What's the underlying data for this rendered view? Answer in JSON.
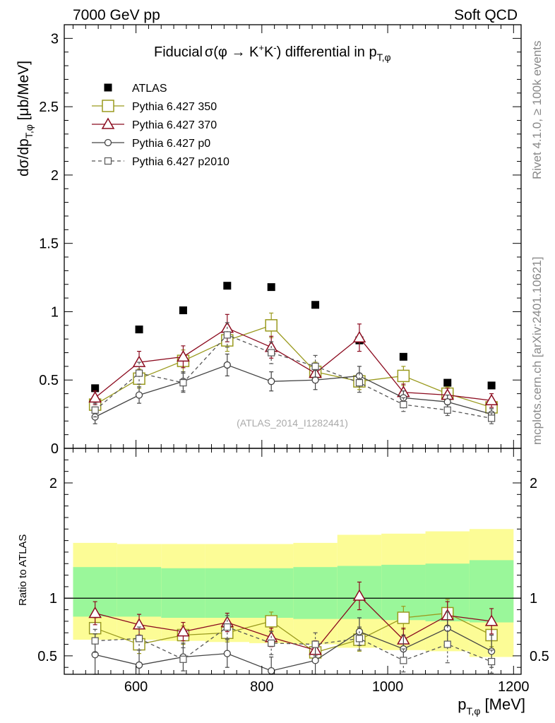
{
  "header": {
    "left": "7000 GeV pp",
    "right": "Soft QCD"
  },
  "side_labels": {
    "rivet": "Rivet 4.1.0, ≥ 100k events",
    "mcplots": "mcplots.cern.ch [arXiv:2401.10621]"
  },
  "watermark": "(ATLAS_2014_I1282441)",
  "colors": {
    "atlas": "#000000",
    "p350": "#9a9a1e",
    "p370": "#8b0a1e",
    "p0": "#444444",
    "p2010": "#555555",
    "band_inner": "#9af79a",
    "band_outer": "#fcfc96"
  },
  "chart_data": [
    {
      "type": "line",
      "title": "Fiducial σ(φ → K⁺K⁻) differential in p_T,φ",
      "title_parts": {
        "prefix": "Fiducial",
        "sigma": "σ(φ →  K",
        "k1sup": "+",
        "kmid": "K",
        "k2sup": "-",
        "suffix": ") differential in p",
        "sub": "T,φ"
      },
      "ylabel": {
        "main": "dσ/dp",
        "sub": "T,φ",
        "unit": " [μb/MeV]"
      },
      "ylim": [
        0,
        3.1
      ],
      "xlim": [
        486,
        1212
      ],
      "yticks": [
        {
          "v": 0,
          "label": "0"
        },
        {
          "v": 0.5,
          "label": "0.5"
        },
        {
          "v": 1,
          "label": "1"
        },
        {
          "v": 1.5,
          "label": "1.5"
        },
        {
          "v": 2,
          "label": "2"
        },
        {
          "v": 2.5,
          "label": "2.5"
        },
        {
          "v": 3,
          "label": "3"
        }
      ],
      "x": [
        535,
        605,
        675,
        745,
        815,
        885,
        955,
        1025,
        1095,
        1165
      ],
      "legend": [
        {
          "key": "atlas",
          "label": "ATLAS"
        },
        {
          "key": "p350",
          "label": "Pythia 6.427 350"
        },
        {
          "key": "p370",
          "label": "Pythia 6.427 370"
        },
        {
          "key": "p0",
          "label": "Pythia 6.427 p0"
        },
        {
          "key": "p2010",
          "label": "Pythia 6.427 p2010"
        }
      ],
      "series": [
        {
          "key": "atlas",
          "name": "ATLAS",
          "marker": "square-filled",
          "values": [
            0.44,
            0.87,
            1.01,
            1.19,
            1.18,
            1.05,
            0.79,
            0.67,
            0.48,
            0.46
          ]
        },
        {
          "key": "p350",
          "name": "Pythia 6.427 350",
          "marker": "square-open",
          "line": "solid",
          "values": [
            0.32,
            0.51,
            0.64,
            0.79,
            0.9,
            0.56,
            0.49,
            0.53,
            0.4,
            0.3
          ],
          "errors": [
            0.05,
            0.07,
            0.08,
            0.08,
            0.09,
            0.07,
            0.06,
            0.07,
            0.05,
            0.05
          ]
        },
        {
          "key": "p370",
          "name": "Pythia 6.427 370",
          "marker": "triangle-open",
          "line": "solid",
          "values": [
            0.37,
            0.63,
            0.67,
            0.88,
            0.74,
            0.55,
            0.81,
            0.41,
            0.39,
            0.35
          ],
          "errors": [
            0.05,
            0.08,
            0.08,
            0.1,
            0.08,
            0.07,
            0.1,
            0.06,
            0.05,
            0.05
          ]
        },
        {
          "key": "p0",
          "name": "Pythia 6.427 p0",
          "marker": "circle-open",
          "line": "solid",
          "values": [
            0.23,
            0.39,
            0.49,
            0.61,
            0.49,
            0.5,
            0.53,
            0.37,
            0.34,
            0.25
          ],
          "errors": [
            0.05,
            0.06,
            0.07,
            0.08,
            0.07,
            0.07,
            0.07,
            0.05,
            0.05,
            0.04
          ]
        },
        {
          "key": "p2010",
          "name": "Pythia 6.427 p2010",
          "marker": "square-open-small",
          "line": "dashed",
          "values": [
            0.28,
            0.55,
            0.48,
            0.83,
            0.7,
            0.6,
            0.48,
            0.32,
            0.28,
            0.22
          ],
          "errors": [
            0.05,
            0.08,
            0.07,
            0.09,
            0.08,
            0.08,
            0.07,
            0.05,
            0.04,
            0.04
          ]
        }
      ]
    },
    {
      "type": "line",
      "title": "Ratio to ATLAS",
      "ylabel": "Ratio to ATLAS",
      "xlabel": {
        "main": "p",
        "sub": "T,φ",
        "unit": " [MeV]"
      },
      "ylim": [
        0.34,
        2.3
      ],
      "xlim": [
        486,
        1212
      ],
      "yticks": [
        {
          "v": 0.5,
          "label": "0.5"
        },
        {
          "v": 1,
          "label": "1"
        },
        {
          "v": 2,
          "label": "2"
        }
      ],
      "xticks": [
        {
          "v": 600,
          "label": "600"
        },
        {
          "v": 800,
          "label": "800"
        },
        {
          "v": 1000,
          "label": "1000"
        },
        {
          "v": 1200,
          "label": "1200"
        }
      ],
      "x": [
        535,
        605,
        675,
        745,
        815,
        885,
        955,
        1025,
        1095,
        1165
      ],
      "bands": {
        "edges": [
          500,
          570,
          640,
          710,
          780,
          850,
          920,
          990,
          1060,
          1130,
          1200
        ],
        "inner_lo": [
          0.84,
          0.84,
          0.83,
          0.83,
          0.83,
          0.82,
          0.82,
          0.81,
          0.8,
          0.79
        ],
        "inner_hi": [
          1.27,
          1.27,
          1.26,
          1.26,
          1.26,
          1.27,
          1.28,
          1.29,
          1.3,
          1.33
        ],
        "outer_lo": [
          0.64,
          0.64,
          0.63,
          0.62,
          0.61,
          0.6,
          0.57,
          0.55,
          0.54,
          0.49
        ],
        "outer_hi": [
          1.48,
          1.47,
          1.47,
          1.47,
          1.47,
          1.48,
          1.55,
          1.56,
          1.58,
          1.6
        ]
      },
      "series": [
        {
          "key": "p350",
          "values": [
            0.74,
            0.6,
            0.68,
            0.7,
            0.8,
            0.53,
            0.64,
            0.83,
            0.87,
            0.68
          ],
          "errors": [
            0.09,
            0.08,
            0.08,
            0.08,
            0.08,
            0.08,
            0.1,
            0.1,
            0.12,
            0.1
          ]
        },
        {
          "key": "p370",
          "values": [
            0.87,
            0.77,
            0.71,
            0.79,
            0.66,
            0.55,
            1.02,
            0.64,
            0.85,
            0.8
          ],
          "errors": [
            0.1,
            0.09,
            0.08,
            0.08,
            0.08,
            0.08,
            0.12,
            0.1,
            0.12,
            0.11
          ]
        },
        {
          "key": "p0",
          "values": [
            0.51,
            0.42,
            0.49,
            0.52,
            0.37,
            0.46,
            0.71,
            0.56,
            0.74,
            0.54
          ],
          "errors": [
            0.18,
            0.13,
            0.12,
            0.12,
            0.12,
            0.12,
            0.12,
            0.12,
            0.14,
            0.14
          ]
        },
        {
          "key": "p2010",
          "values": [
            0.63,
            0.65,
            0.47,
            0.75,
            0.61,
            0.6,
            0.65,
            0.46,
            0.6,
            0.45
          ],
          "errors": [
            0.1,
            0.1,
            0.1,
            0.1,
            0.1,
            0.1,
            0.1,
            0.1,
            0.16,
            0.1
          ]
        }
      ]
    }
  ]
}
